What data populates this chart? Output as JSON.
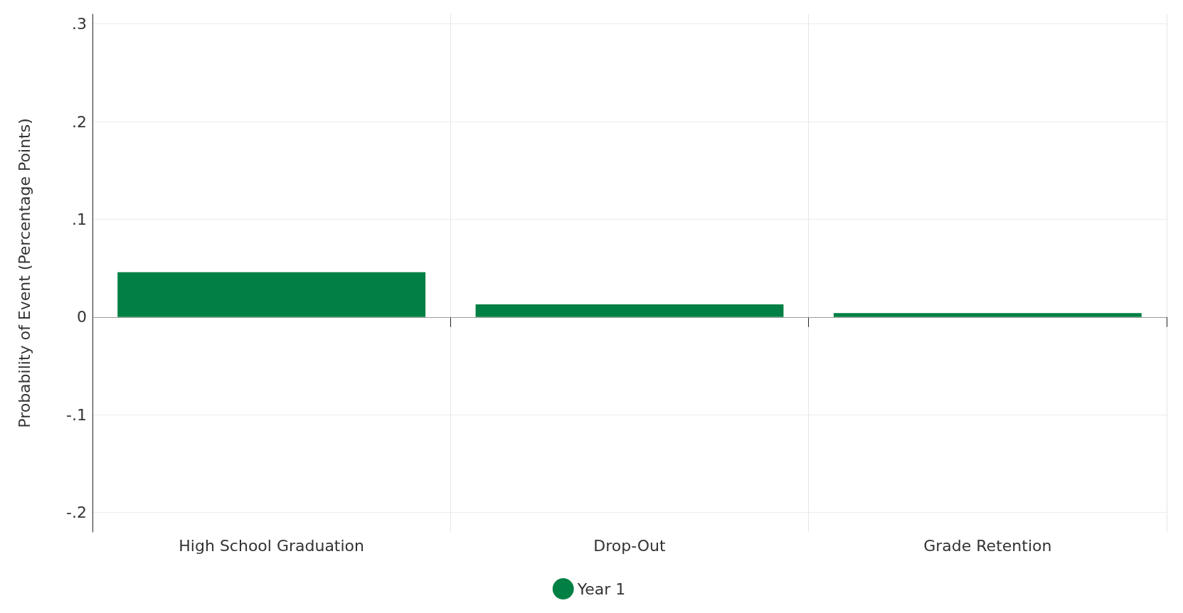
{
  "chart_data": {
    "type": "bar",
    "ylabel": "Probability of Event (Percentage Points)",
    "categories": [
      "High School Graduation",
      "Drop-Out",
      "Grade Retention"
    ],
    "series": [
      {
        "name": "Year 1",
        "color": "#008044",
        "values": [
          0.046,
          0.013,
          0.004
        ]
      }
    ],
    "ylim": [
      -0.22,
      0.31
    ],
    "yticks": [
      {
        "value": -0.2,
        "label": "-.2"
      },
      {
        "value": -0.1,
        "label": "-.1"
      },
      0,
      {
        "value": 0.1,
        "label": ".1"
      },
      {
        "value": 0.2,
        "label": ".2"
      },
      {
        "value": 0.3,
        "label": ".3"
      }
    ],
    "ref_lines": [
      {
        "axis": "y",
        "value": 0,
        "color": "#999999"
      }
    ],
    "grid": true,
    "legend": "bottom"
  }
}
